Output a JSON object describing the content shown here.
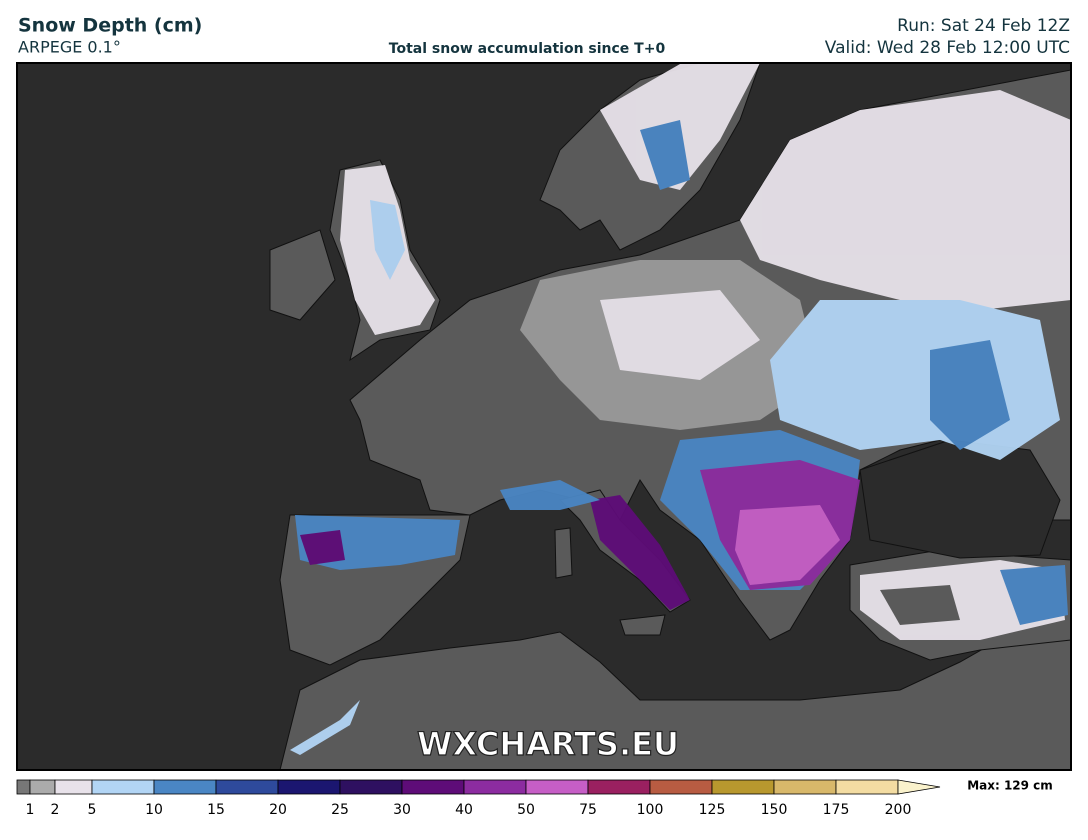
{
  "header": {
    "title": "Snow Depth (cm)",
    "model": "ARPEGE 0.1°",
    "subtitle": "Total snow accumulation since T+0",
    "run": "Run: Sat 24 Feb 12Z",
    "valid": "Valid: Wed 28 Feb 12:00 UTC"
  },
  "watermark": "WXCHARTS.EU",
  "colorbar": {
    "ticks": [
      1,
      2,
      5,
      10,
      15,
      20,
      25,
      30,
      40,
      50,
      75,
      100,
      125,
      150,
      175,
      200
    ],
    "colors": [
      "#777777",
      "#ababab",
      "#e8e2ea",
      "#b2d5f5",
      "#4a86c4",
      "#2e4a9c",
      "#1b1670",
      "#2e1060",
      "#5e0c78",
      "#8c2ca0",
      "#c65ec6",
      "#9a2060",
      "#b85c42",
      "#b8982e",
      "#d8b86a",
      "#f3dca2",
      "#faf2cc"
    ],
    "max_label": "Max: 129 cm"
  }
}
